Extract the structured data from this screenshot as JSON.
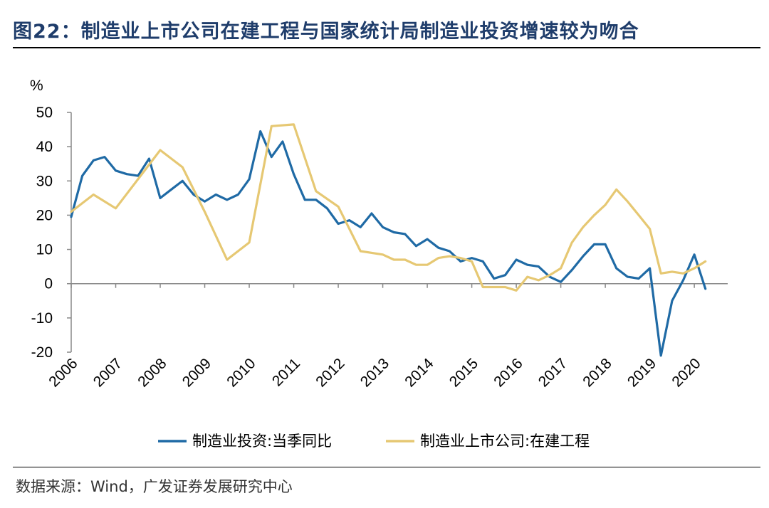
{
  "header": {
    "figure_title": "图22：制造业上市公司在建工程与国家统计局制造业投资增速较为吻合"
  },
  "footer": {
    "source": "数据来源：Wind，广发证券发展研究中心"
  },
  "colors": {
    "series_blue": "#1f6aa5",
    "series_gold": "#e6c873",
    "title": "#1f3d6b"
  },
  "chart_data": {
    "type": "line",
    "title": "",
    "ylabel": "%",
    "xlabel": "",
    "ylim": [
      -20,
      50
    ],
    "xlim": [
      2006.0,
      2020.75
    ],
    "yticks": [
      50,
      40,
      30,
      20,
      10,
      0,
      -10,
      -20
    ],
    "xticks": [
      "2006",
      "2007",
      "2008",
      "2009",
      "2010",
      "2011",
      "2012",
      "2013",
      "2014",
      "2015",
      "2016",
      "2017",
      "2018",
      "2019",
      "2020"
    ],
    "legend_position": "bottom",
    "series": [
      {
        "name": "制造业投资:当季同比",
        "color": "#1f6aa5",
        "points": [
          [
            2006.0,
            19.5
          ],
          [
            2006.25,
            31.5
          ],
          [
            2006.5,
            36.0
          ],
          [
            2006.75,
            37.0
          ],
          [
            2007.0,
            33.0
          ],
          [
            2007.25,
            32.0
          ],
          [
            2007.5,
            31.5
          ],
          [
            2007.75,
            36.5
          ],
          [
            2008.0,
            25.0
          ],
          [
            2008.25,
            27.5
          ],
          [
            2008.5,
            30.0
          ],
          [
            2008.75,
            26.0
          ],
          [
            2009.0,
            24.0
          ],
          [
            2009.25,
            26.0
          ],
          [
            2009.5,
            24.5
          ],
          [
            2009.75,
            26.0
          ],
          [
            2010.0,
            30.5
          ],
          [
            2010.25,
            44.5
          ],
          [
            2010.5,
            37.0
          ],
          [
            2010.75,
            41.5
          ],
          [
            2011.0,
            32.0
          ],
          [
            2011.25,
            24.5
          ],
          [
            2011.5,
            24.5
          ],
          [
            2011.75,
            22.0
          ],
          [
            2012.0,
            17.5
          ],
          [
            2012.25,
            18.5
          ],
          [
            2012.5,
            16.5
          ],
          [
            2012.75,
            20.5
          ],
          [
            2013.0,
            16.5
          ],
          [
            2013.25,
            15.0
          ],
          [
            2013.5,
            14.5
          ],
          [
            2013.75,
            11.0
          ],
          [
            2014.0,
            13.0
          ],
          [
            2014.25,
            10.5
          ],
          [
            2014.5,
            9.5
          ],
          [
            2014.75,
            6.5
          ],
          [
            2015.0,
            7.5
          ],
          [
            2015.25,
            6.5
          ],
          [
            2015.5,
            1.5
          ],
          [
            2015.75,
            2.5
          ],
          [
            2016.0,
            7.0
          ],
          [
            2016.25,
            5.5
          ],
          [
            2016.5,
            5.0
          ],
          [
            2016.75,
            2.0
          ],
          [
            2017.0,
            0.5
          ],
          [
            2017.25,
            4.0
          ],
          [
            2017.5,
            8.0
          ],
          [
            2017.75,
            11.5
          ],
          [
            2018.0,
            11.5
          ],
          [
            2018.25,
            4.5
          ],
          [
            2018.5,
            2.0
          ],
          [
            2018.75,
            1.5
          ],
          [
            2019.0,
            4.5
          ],
          [
            2019.25,
            -21.0
          ],
          [
            2019.5,
            -5.0
          ],
          [
            2019.75,
            1.0
          ],
          [
            2020.0,
            8.5
          ],
          [
            2020.25,
            -1.5
          ]
        ]
      },
      {
        "name": "制造业上市公司:在建工程",
        "color": "#e6c873",
        "points": [
          [
            2006.0,
            21.0
          ],
          [
            2006.5,
            26.0
          ],
          [
            2007.0,
            22.0
          ],
          [
            2007.5,
            30.5
          ],
          [
            2008.0,
            39.0
          ],
          [
            2008.5,
            34.0
          ],
          [
            2009.0,
            21.0
          ],
          [
            2009.5,
            7.0
          ],
          [
            2010.0,
            12.0
          ],
          [
            2010.5,
            46.0
          ],
          [
            2011.0,
            46.5
          ],
          [
            2011.5,
            27.0
          ],
          [
            2012.0,
            22.5
          ],
          [
            2012.5,
            9.5
          ],
          [
            2013.0,
            8.5
          ],
          [
            2013.25,
            7.0
          ],
          [
            2013.5,
            7.0
          ],
          [
            2013.75,
            5.5
          ],
          [
            2014.0,
            5.5
          ],
          [
            2014.25,
            7.5
          ],
          [
            2014.5,
            8.0
          ],
          [
            2014.75,
            7.5
          ],
          [
            2015.0,
            6.5
          ],
          [
            2015.25,
            -1.0
          ],
          [
            2015.5,
            -1.0
          ],
          [
            2015.75,
            -1.0
          ],
          [
            2016.0,
            -2.0
          ],
          [
            2016.25,
            2.0
          ],
          [
            2016.5,
            1.0
          ],
          [
            2016.75,
            2.5
          ],
          [
            2017.0,
            4.5
          ],
          [
            2017.25,
            12.0
          ],
          [
            2017.5,
            16.5
          ],
          [
            2017.75,
            20.0
          ],
          [
            2018.0,
            23.0
          ],
          [
            2018.25,
            27.5
          ],
          [
            2018.5,
            24.0
          ],
          [
            2018.75,
            20.0
          ],
          [
            2019.0,
            16.0
          ],
          [
            2019.25,
            3.0
          ],
          [
            2019.5,
            3.5
          ],
          [
            2019.75,
            3.0
          ],
          [
            2020.0,
            4.5
          ],
          [
            2020.25,
            6.5
          ]
        ]
      }
    ]
  }
}
